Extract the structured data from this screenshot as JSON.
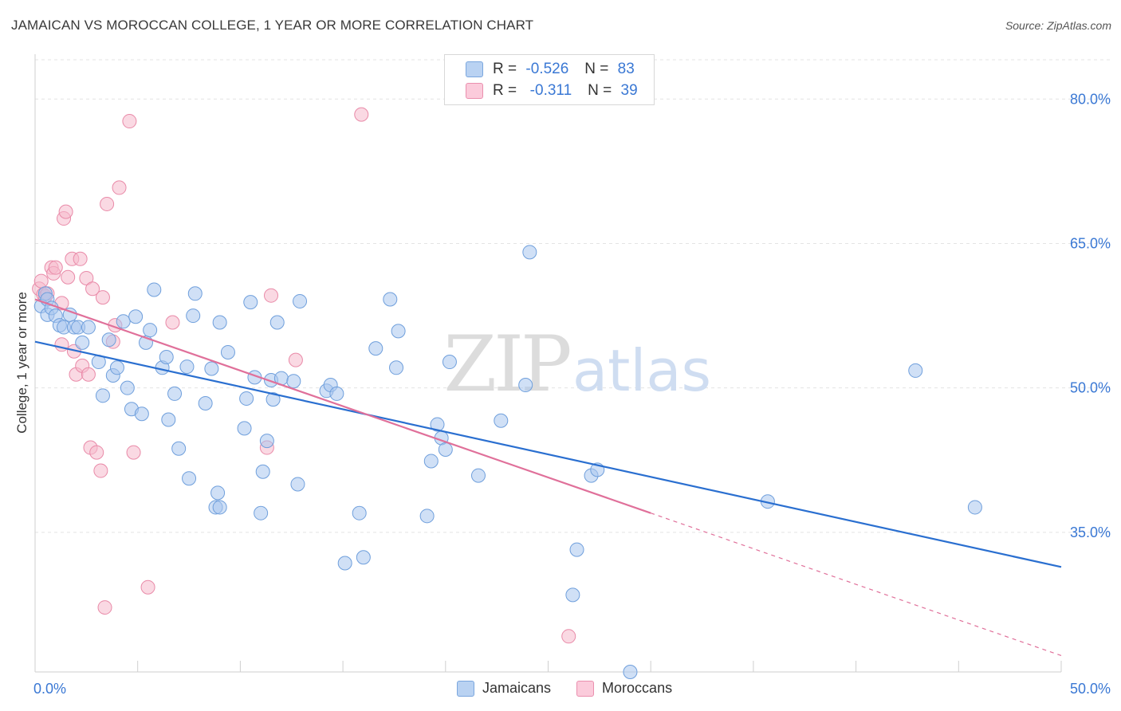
{
  "header": {
    "title": "JAMAICAN VS MOROCCAN COLLEGE, 1 YEAR OR MORE CORRELATION CHART",
    "source": "Source: ZipAtlas.com"
  },
  "legend_top": [
    {
      "r_label": "R =",
      "r_value": "-0.526",
      "n_label": "N =",
      "n_value": "83"
    },
    {
      "r_label": "R =",
      "r_value": " -0.311",
      "n_label": "N =",
      "n_value": "39"
    }
  ],
  "watermark": {
    "zip": "ZIP",
    "atlas": "atlas"
  },
  "colors": {
    "jamaicans_fill": "#a9c6ee",
    "jamaicans_stroke": "#6f9fdc",
    "jamaicans_line": "#2a6fd0",
    "moroccans_fill": "#f6b9cc",
    "moroccans_stroke": "#e98aa8",
    "moroccans_line": "#e0709a",
    "axis_text": "#3a78d4"
  },
  "chart_data": {
    "type": "scatter",
    "title": "JAMAICAN VS MOROCCAN COLLEGE, 1 YEAR OR MORE CORRELATION CHART",
    "xlabel": "",
    "ylabel": "College, 1 year or more",
    "xlim": [
      0,
      50
    ],
    "ylim": [
      20.5,
      83.5
    ],
    "x_tick_labels": [
      {
        "value": 0,
        "label": "0.0%"
      },
      {
        "value": 50,
        "label": "50.0%"
      }
    ],
    "y_tick_labels": [
      {
        "value": 80,
        "label": "80.0%"
      },
      {
        "value": 65,
        "label": "65.0%"
      },
      {
        "value": 50,
        "label": "50.0%"
      },
      {
        "value": 35,
        "label": "35.0%"
      }
    ],
    "series": [
      {
        "name": "Jamaicans",
        "r": -0.526,
        "n": 83,
        "trend": {
          "x0": 0,
          "y0": 54.8,
          "x1": 50,
          "y1": 31.4
        },
        "points": [
          [
            0.3,
            58.5
          ],
          [
            0.5,
            59.8
          ],
          [
            0.6,
            59.2
          ],
          [
            0.6,
            57.6
          ],
          [
            0.8,
            58.3
          ],
          [
            1.0,
            57.5
          ],
          [
            1.2,
            56.5
          ],
          [
            1.4,
            56.3
          ],
          [
            1.7,
            57.6
          ],
          [
            1.9,
            56.3
          ],
          [
            2.1,
            56.3
          ],
          [
            2.3,
            54.7
          ],
          [
            2.6,
            56.3
          ],
          [
            3.1,
            52.7
          ],
          [
            3.3,
            49.2
          ],
          [
            3.6,
            55.0
          ],
          [
            3.8,
            51.3
          ],
          [
            4.0,
            52.1
          ],
          [
            4.3,
            56.9
          ],
          [
            4.5,
            50.0
          ],
          [
            4.7,
            47.8
          ],
          [
            4.9,
            57.4
          ],
          [
            5.2,
            47.3
          ],
          [
            5.4,
            54.7
          ],
          [
            5.6,
            56.0
          ],
          [
            5.8,
            60.2
          ],
          [
            6.2,
            52.1
          ],
          [
            6.4,
            53.2
          ],
          [
            6.5,
            46.7
          ],
          [
            6.8,
            49.4
          ],
          [
            7.0,
            43.7
          ],
          [
            7.4,
            52.2
          ],
          [
            7.5,
            40.6
          ],
          [
            7.7,
            57.5
          ],
          [
            7.8,
            59.8
          ],
          [
            8.3,
            48.4
          ],
          [
            8.6,
            52.0
          ],
          [
            8.8,
            37.6
          ],
          [
            8.9,
            39.1
          ],
          [
            9.0,
            37.6
          ],
          [
            9.0,
            56.8
          ],
          [
            9.4,
            53.7
          ],
          [
            10.2,
            45.8
          ],
          [
            10.3,
            48.9
          ],
          [
            10.5,
            58.9
          ],
          [
            10.7,
            51.1
          ],
          [
            11.0,
            37.0
          ],
          [
            11.1,
            41.3
          ],
          [
            11.3,
            44.5
          ],
          [
            11.5,
            50.8
          ],
          [
            11.6,
            48.8
          ],
          [
            11.8,
            56.8
          ],
          [
            12.0,
            51.0
          ],
          [
            12.6,
            50.7
          ],
          [
            12.8,
            40.0
          ],
          [
            12.9,
            59.0
          ],
          [
            14.2,
            49.7
          ],
          [
            14.4,
            50.3
          ],
          [
            14.7,
            49.4
          ],
          [
            15.1,
            31.8
          ],
          [
            15.8,
            37.0
          ],
          [
            16.0,
            32.4
          ],
          [
            16.6,
            54.1
          ],
          [
            17.3,
            59.2
          ],
          [
            17.6,
            52.1
          ],
          [
            17.7,
            55.9
          ],
          [
            19.1,
            36.7
          ],
          [
            19.3,
            42.4
          ],
          [
            19.6,
            46.2
          ],
          [
            19.8,
            44.8
          ],
          [
            20.0,
            43.6
          ],
          [
            20.2,
            52.7
          ],
          [
            21.6,
            40.9
          ],
          [
            22.7,
            46.6
          ],
          [
            23.9,
            50.3
          ],
          [
            24.1,
            64.1
          ],
          [
            26.2,
            28.5
          ],
          [
            26.4,
            33.2
          ],
          [
            27.1,
            40.9
          ],
          [
            27.4,
            41.5
          ],
          [
            29.0,
            20.5
          ],
          [
            35.7,
            38.2
          ],
          [
            42.9,
            51.8
          ],
          [
            45.8,
            37.6
          ]
        ]
      },
      {
        "name": "Moroccans",
        "r": -0.311,
        "n": 39,
        "trend_solid": {
          "x0": 0,
          "y0": 59.2,
          "x1": 30.0,
          "y1": 37.0
        },
        "trend_dashed": {
          "x0": 30.0,
          "y0": 37.0,
          "x1": 50,
          "y1": 22.2
        },
        "points": [
          [
            0.2,
            60.3
          ],
          [
            0.3,
            61.1
          ],
          [
            0.4,
            59.7
          ],
          [
            0.5,
            59.5
          ],
          [
            0.6,
            59.8
          ],
          [
            0.8,
            62.5
          ],
          [
            0.9,
            61.9
          ],
          [
            1.0,
            62.5
          ],
          [
            1.3,
            58.8
          ],
          [
            1.3,
            54.5
          ],
          [
            1.4,
            67.6
          ],
          [
            1.5,
            68.3
          ],
          [
            1.6,
            61.5
          ],
          [
            1.8,
            63.4
          ],
          [
            1.9,
            53.8
          ],
          [
            2.0,
            51.4
          ],
          [
            2.2,
            63.4
          ],
          [
            2.3,
            52.3
          ],
          [
            2.5,
            61.4
          ],
          [
            2.6,
            51.4
          ],
          [
            2.7,
            43.8
          ],
          [
            2.8,
            60.3
          ],
          [
            3.0,
            43.3
          ],
          [
            3.2,
            41.4
          ],
          [
            3.3,
            59.4
          ],
          [
            3.4,
            27.2
          ],
          [
            3.5,
            69.1
          ],
          [
            3.8,
            54.8
          ],
          [
            3.9,
            56.5
          ],
          [
            4.1,
            70.8
          ],
          [
            4.6,
            77.7
          ],
          [
            4.8,
            43.3
          ],
          [
            5.5,
            29.3
          ],
          [
            6.7,
            56.8
          ],
          [
            11.3,
            43.8
          ],
          [
            11.5,
            59.6
          ],
          [
            12.7,
            52.9
          ],
          [
            15.9,
            78.4
          ],
          [
            26.0,
            24.2
          ]
        ]
      }
    ]
  }
}
